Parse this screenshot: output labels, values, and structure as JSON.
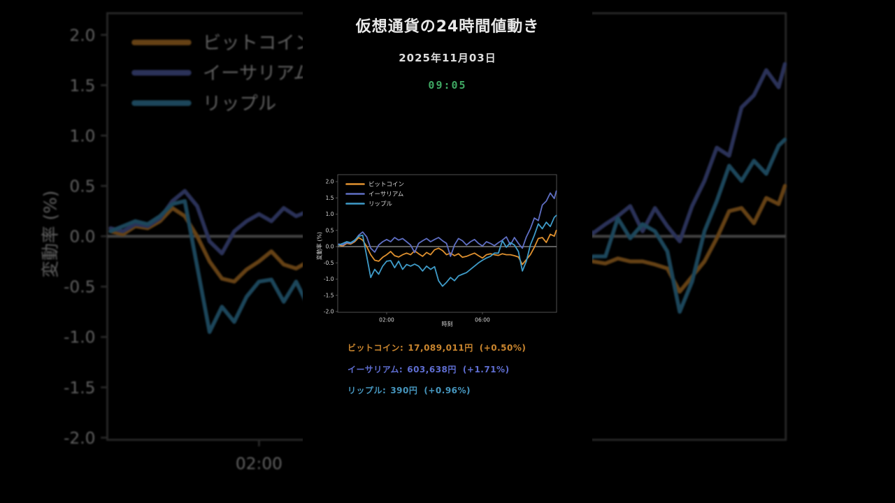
{
  "video": {
    "title": "仮想通貨の24時間値動き",
    "date": "2025年11月03日",
    "time": "09:05",
    "time_color": "#3fa863"
  },
  "chart_data": {
    "type": "line",
    "title": "",
    "xlabel": "時刻",
    "ylabel": "変動率 (%)",
    "x_unit": "minutes_after_midnight",
    "xlim_minutes": [
      0,
      545
    ],
    "ylim": [
      -2.0,
      2.2
    ],
    "grid": false,
    "zero_line": true,
    "zero_line_color": "#969696",
    "legend_position": "upper-left",
    "yticks": [
      {
        "v": 2.0,
        "label": "2.0"
      },
      {
        "v": 1.5,
        "label": "1.5"
      },
      {
        "v": 1.0,
        "label": "1.0"
      },
      {
        "v": 0.5,
        "label": "0.5"
      },
      {
        "v": 0.0,
        "label": "0.0"
      },
      {
        "v": -0.5,
        "label": "-0.5"
      },
      {
        "v": -1.0,
        "label": "-1.0"
      },
      {
        "v": -1.5,
        "label": "-1.5"
      },
      {
        "v": -2.0,
        "label": "-2.0"
      }
    ],
    "xticks": [
      {
        "m": 120,
        "label": "02:00"
      },
      {
        "m": 360,
        "label": "06:00"
      }
    ],
    "x_minutes": [
      0,
      10,
      20,
      30,
      40,
      50,
      60,
      70,
      80,
      90,
      100,
      110,
      120,
      130,
      140,
      150,
      160,
      170,
      180,
      190,
      200,
      210,
      220,
      230,
      240,
      250,
      260,
      270,
      280,
      290,
      300,
      310,
      320,
      330,
      340,
      350,
      360,
      370,
      380,
      390,
      400,
      410,
      420,
      430,
      440,
      450,
      460,
      470,
      480,
      490,
      500,
      510,
      520,
      530,
      540,
      545
    ],
    "series": [
      {
        "name": "ビットコイン",
        "color": "#e0912f",
        "values": [
          0.05,
          0.02,
          0.1,
          0.08,
          0.15,
          0.28,
          0.2,
          0.0,
          -0.25,
          -0.42,
          -0.45,
          -0.33,
          -0.25,
          -0.15,
          -0.28,
          -0.32,
          -0.25,
          -0.2,
          -0.25,
          -0.13,
          -0.22,
          -0.3,
          -0.18,
          -0.25,
          -0.1,
          -0.05,
          -0.12,
          -0.25,
          -0.2,
          -0.28,
          -0.22,
          -0.33,
          -0.3,
          -0.25,
          -0.2,
          -0.28,
          -0.35,
          -0.25,
          -0.22,
          -0.25,
          -0.27,
          -0.22,
          -0.25,
          -0.25,
          -0.28,
          -0.32,
          -0.55,
          -0.4,
          -0.25,
          -0.02,
          0.25,
          0.28,
          0.13,
          0.38,
          0.32,
          0.5
        ]
      },
      {
        "name": "イーサリアム",
        "color": "#5f6fc4",
        "values": [
          0.08,
          0.05,
          0.12,
          0.1,
          0.18,
          0.35,
          0.45,
          0.3,
          -0.05,
          -0.17,
          0.05,
          0.15,
          0.22,
          0.15,
          0.28,
          0.2,
          0.25,
          0.15,
          0.05,
          -0.18,
          0.1,
          0.18,
          0.25,
          0.15,
          0.22,
          0.28,
          0.18,
          0.1,
          -0.3,
          0.05,
          0.25,
          0.18,
          0.05,
          0.15,
          0.22,
          0.1,
          0.02,
          0.15,
          0.1,
          0.03,
          0.12,
          0.2,
          0.3,
          0.05,
          0.28,
          0.1,
          -0.05,
          0.3,
          0.55,
          0.88,
          0.8,
          1.28,
          1.4,
          1.65,
          1.48,
          1.71
        ]
      },
      {
        "name": "リップル",
        "color": "#3f9cc9",
        "values": [
          0.05,
          0.1,
          0.15,
          0.12,
          0.2,
          0.32,
          0.35,
          -0.3,
          -0.95,
          -0.7,
          -0.85,
          -0.6,
          -0.45,
          -0.43,
          -0.65,
          -0.45,
          -0.7,
          -0.55,
          -0.6,
          -0.54,
          -0.6,
          -0.75,
          -0.6,
          -0.7,
          -0.62,
          -1.05,
          -1.22,
          -1.1,
          -0.95,
          -1.05,
          -0.9,
          -0.85,
          -0.8,
          -0.7,
          -0.6,
          -0.5,
          -0.42,
          -0.35,
          -0.3,
          -0.2,
          -0.2,
          0.18,
          -0.02,
          0.12,
          0.05,
          -0.15,
          -0.75,
          -0.45,
          0.05,
          0.35,
          0.7,
          0.55,
          0.75,
          0.62,
          0.9,
          0.96
        ]
      }
    ]
  },
  "prices": [
    {
      "label": "ビットコイン:",
      "value": "17,089,011円",
      "change": "(+0.50%)",
      "color": "#c9852e"
    },
    {
      "label": "イーサリアム:",
      "value": "603,638円",
      "change": "(+1.71%)",
      "color": "#5f6ed2"
    },
    {
      "label": "リップル:",
      "value": "390円",
      "change": "(+0.96%)",
      "color": "#4696be"
    }
  ]
}
